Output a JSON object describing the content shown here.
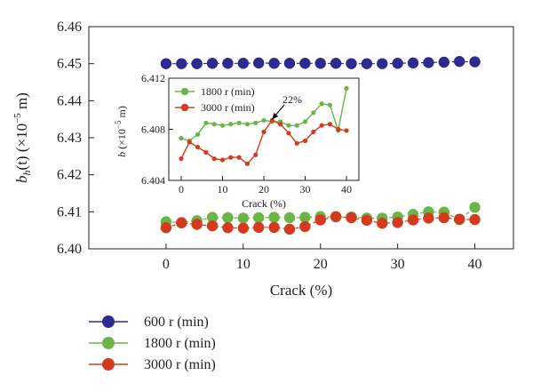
{
  "chart_data": [
    {
      "type": "scatter",
      "xlabel": "Crack (%)",
      "ylabel": "b_h(t) (×10⁻⁵ m)",
      "ylabel_parts": {
        "sym": "b",
        "sub": "h",
        "arg": "(t)",
        "unit_pre": " (×10",
        "exp": "−5",
        "unit_post": " m)"
      },
      "xlim": [
        -10,
        45
      ],
      "ylim": [
        6.4,
        6.46
      ],
      "x_ticks": [
        "0",
        "10",
        "20",
        "30",
        "40"
      ],
      "y_ticks": [
        "6.40",
        "6.41",
        "6.42",
        "6.43",
        "6.44",
        "6.45",
        "6.46"
      ],
      "legend_position": "bottom-left outside",
      "series": [
        {
          "name": "600 r (min)",
          "color": "#2e2a8f",
          "x": [
            0,
            2,
            4,
            6,
            8,
            10,
            12,
            14,
            16,
            18,
            20,
            22,
            24,
            26,
            28,
            30,
            32,
            34,
            36,
            38,
            40
          ],
          "y": [
            6.45,
            6.45,
            6.45,
            6.4501,
            6.4501,
            6.4501,
            6.4502,
            6.4501,
            6.4501,
            6.4501,
            6.4501,
            6.4501,
            6.45,
            6.45,
            6.45,
            6.4501,
            6.4502,
            6.4503,
            6.4504,
            6.4506,
            6.4505
          ]
        },
        {
          "name": "1800 r (min)",
          "color": "#6ab547",
          "x": [
            0,
            2,
            4,
            6,
            8,
            10,
            12,
            14,
            16,
            18,
            20,
            22,
            24,
            26,
            28,
            30,
            32,
            34,
            36,
            38,
            40
          ],
          "y": [
            6.4073,
            6.4071,
            6.4076,
            6.4085,
            6.4084,
            6.4083,
            6.4084,
            6.4085,
            6.4084,
            6.4085,
            6.4087,
            6.4086,
            6.4086,
            6.4083,
            6.4083,
            6.4086,
            6.4093,
            6.41,
            6.4099,
            6.4079,
            6.4112
          ]
        },
        {
          "name": "3000 r (min)",
          "color": "#d43b1e",
          "x": [
            0,
            2,
            4,
            6,
            8,
            10,
            12,
            14,
            16,
            18,
            20,
            22,
            24,
            26,
            28,
            30,
            32,
            34,
            36,
            38,
            40
          ],
          "y": [
            6.4057,
            6.407,
            6.4066,
            6.4062,
            6.4057,
            6.4056,
            6.4058,
            6.4058,
            6.4053,
            6.406,
            6.4078,
            6.4087,
            6.4084,
            6.4077,
            6.4069,
            6.4071,
            6.4078,
            6.4083,
            6.4084,
            6.408,
            6.4079
          ]
        }
      ]
    },
    {
      "type": "line",
      "role": "inset",
      "xlabel": "Crack (%)",
      "ylabel": "b (×10⁻⁵ m)",
      "ylabel_parts": {
        "sym": "b",
        "unit_pre": " (×10",
        "exp": "−5",
        "unit_post": " m)"
      },
      "xlim": [
        -3,
        43
      ],
      "ylim": [
        6.404,
        6.412
      ],
      "x_ticks": [
        "0",
        "10",
        "20",
        "30",
        "40"
      ],
      "y_ticks": [
        "6.404",
        "6.408",
        "6.412"
      ],
      "legend_position": "top-left",
      "annotation": {
        "text": "22%",
        "arrow_to_x": 22,
        "arrow_to_y": 6.4085
      },
      "series": [
        {
          "name": "1800 r (min)",
          "color": "#6ab547",
          "x": [
            0,
            2,
            4,
            6,
            8,
            10,
            12,
            14,
            16,
            18,
            20,
            22,
            24,
            26,
            28,
            30,
            32,
            34,
            36,
            38,
            40
          ],
          "y": [
            6.4073,
            6.4071,
            6.4076,
            6.4085,
            6.4084,
            6.4083,
            6.4084,
            6.4085,
            6.4084,
            6.4085,
            6.4087,
            6.4086,
            6.4086,
            6.4083,
            6.4083,
            6.4086,
            6.4093,
            6.41,
            6.4099,
            6.4079,
            6.4112
          ]
        },
        {
          "name": "3000 r (min)",
          "color": "#d43b1e",
          "x": [
            0,
            2,
            4,
            6,
            8,
            10,
            12,
            14,
            16,
            18,
            20,
            22,
            24,
            26,
            28,
            30,
            32,
            34,
            36,
            38,
            40
          ],
          "y": [
            6.4057,
            6.407,
            6.4066,
            6.4062,
            6.4057,
            6.4056,
            6.4058,
            6.4058,
            6.4053,
            6.406,
            6.4078,
            6.4087,
            6.4084,
            6.4077,
            6.4069,
            6.4071,
            6.4078,
            6.4083,
            6.4084,
            6.408,
            6.4079
          ]
        }
      ]
    }
  ]
}
